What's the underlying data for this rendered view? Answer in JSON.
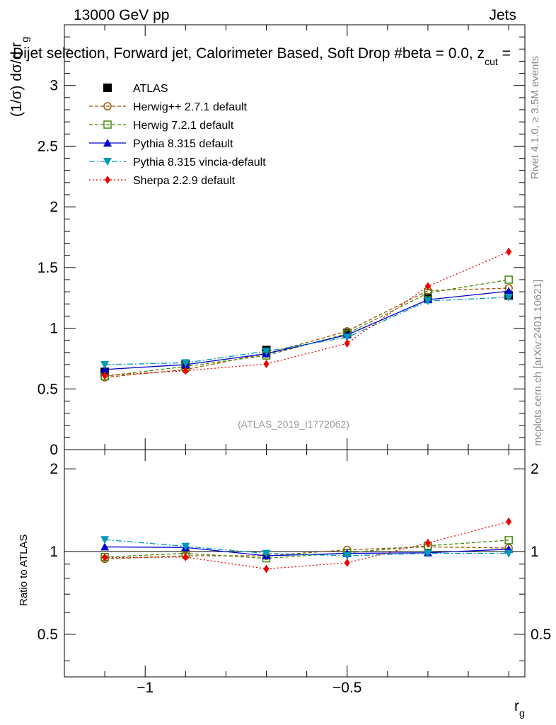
{
  "header": {
    "energy": "13000 GeV pp",
    "process": "Jets",
    "title_main": "Dijet selection, Forward jet, Calorimeter Based, Soft Drop #beta = 0.0, z",
    "title_sub": "cut",
    "title_end": " ="
  },
  "side_labels": {
    "rivet": "Rivet 4.1.0, ≥ 3.5M events",
    "mcplots": "mcplots.cern.ch [arXiv:2401.10621]"
  },
  "watermark": "(ATLAS_2019_I1772062)",
  "axes": {
    "main_ylabel_a": "(1/σ) dσ/d r",
    "main_ylabel_sub": "g",
    "ratio_ylabel": "Ratio to ATLAS",
    "xlabel": "r",
    "xlabel_sub": "g",
    "main_ytick_labels": [
      "0",
      "0.5",
      "1",
      "1.5",
      "2",
      "2.5",
      "3"
    ],
    "ratio_ytick_labels": [
      "0.5",
      "1",
      "2"
    ],
    "xtick_labels": [
      "−1",
      "−0.5"
    ]
  },
  "chart_data": {
    "type": "line",
    "x": [
      -1.1,
      -0.9,
      -0.7,
      -0.5,
      -0.3,
      -0.1
    ],
    "xlim": [
      -1.2,
      -0.06
    ],
    "main_ylim": [
      0,
      3.5
    ],
    "ratio_ylim": [
      0.35,
      2.35
    ],
    "reference": {
      "name": "ATLAS",
      "color": "#000000",
      "marker": "square",
      "values": [
        0.64,
        0.7,
        0.82,
        0.96,
        1.25,
        1.27
      ]
    },
    "series": [
      {
        "name": "Herwig++ 2.7.1 default",
        "color": "#995500",
        "marker": "circle-open",
        "dash": "5,3",
        "values": [
          0.595,
          0.66,
          0.79,
          0.975,
          1.31,
          1.33
        ],
        "ratio": [
          0.94,
          0.965,
          0.965,
          1.015,
          1.04,
          1.03
        ]
      },
      {
        "name": "Herwig 7.2.1 default",
        "color": "#44880a",
        "marker": "square-open",
        "dash": "5,3",
        "values": [
          0.605,
          0.685,
          0.775,
          0.955,
          1.29,
          1.4
        ],
        "ratio": [
          0.955,
          0.985,
          0.945,
          0.99,
          1.05,
          1.1
        ]
      },
      {
        "name": "Pythia 8.315 default",
        "color": "#0000cc",
        "marker": "triangle-up",
        "dash": "none",
        "values": [
          0.66,
          0.7,
          0.79,
          0.945,
          1.235,
          1.305
        ],
        "ratio": [
          1.04,
          1.035,
          0.965,
          0.985,
          0.99,
          1.02
        ]
      },
      {
        "name": "Pythia 8.315 vincia-default",
        "color": "#0099bb",
        "marker": "triangle-down",
        "dash": "8,3,2,3",
        "values": [
          0.7,
          0.715,
          0.81,
          0.925,
          1.225,
          1.255
        ],
        "ratio": [
          1.105,
          1.045,
          0.985,
          0.965,
          0.985,
          0.985
        ]
      },
      {
        "name": "Sherpa 2.2.9 default",
        "color": "#ee0000",
        "marker": "diamond",
        "dash": "2,3",
        "values": [
          0.61,
          0.65,
          0.705,
          0.875,
          1.345,
          1.63
        ],
        "ratio": [
          0.95,
          0.955,
          0.865,
          0.91,
          1.075,
          1.285
        ]
      }
    ]
  }
}
